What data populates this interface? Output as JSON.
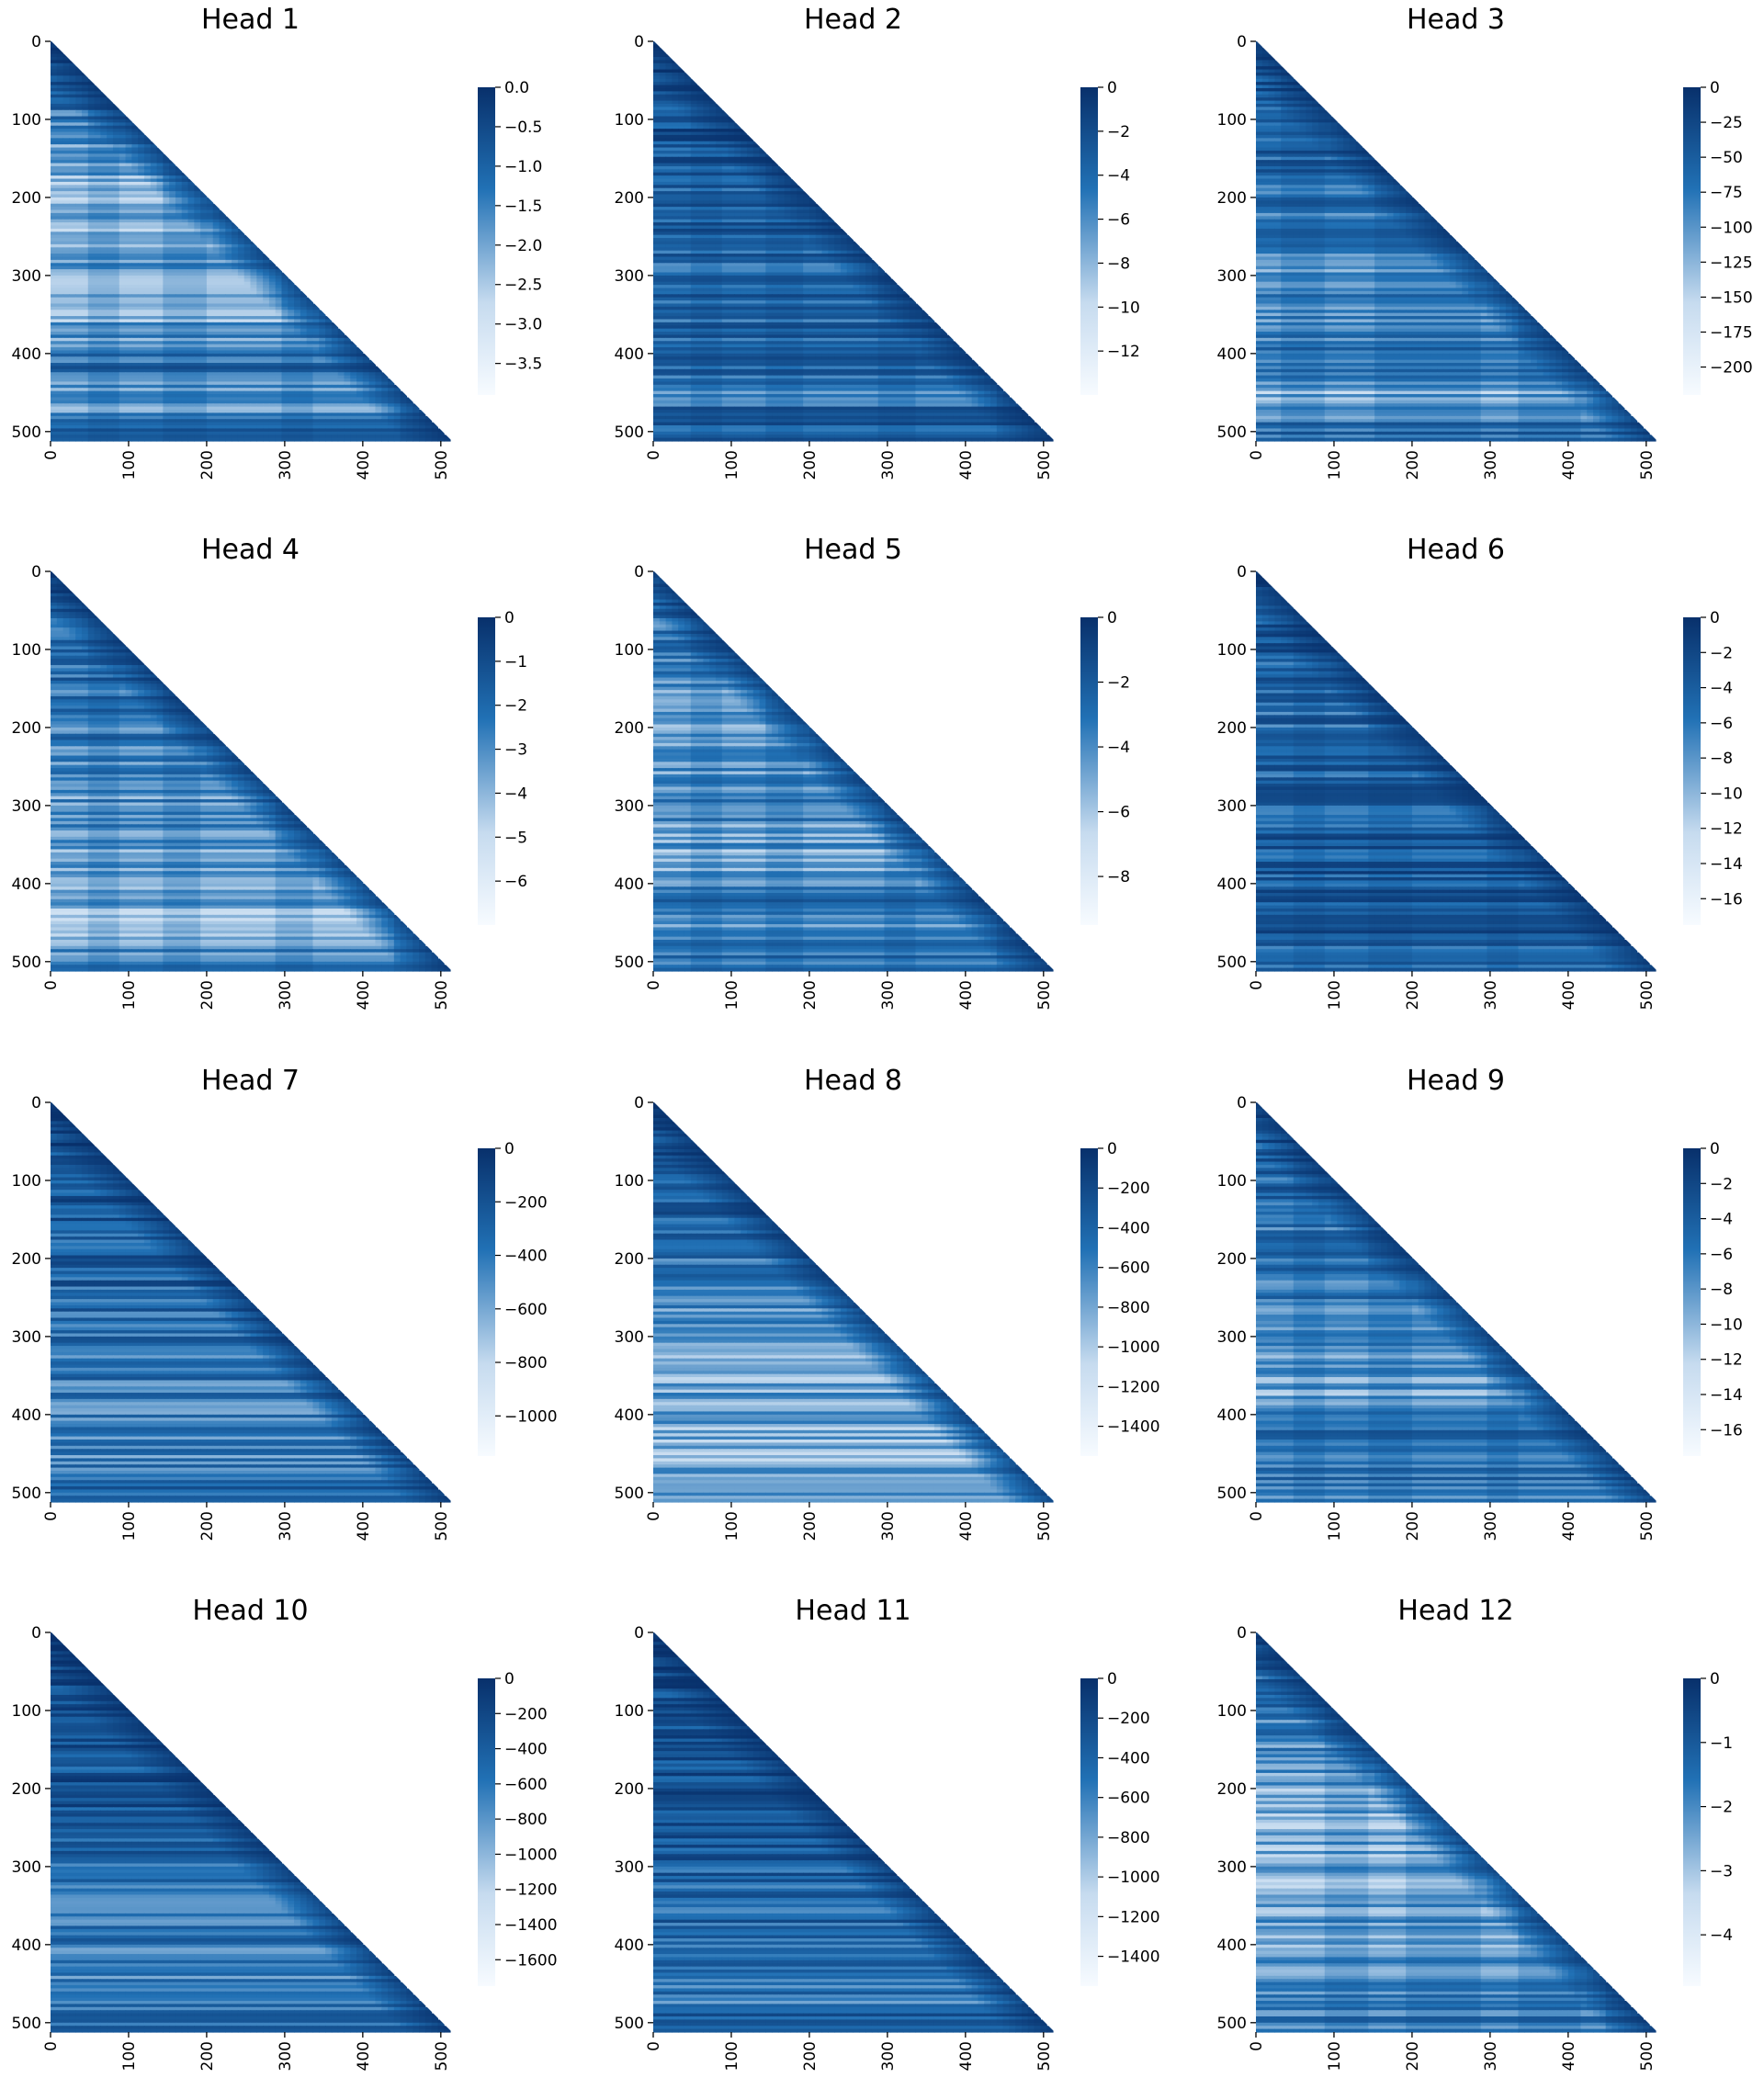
{
  "colors": {
    "dark": "#08306b",
    "mid": "#2171b5",
    "light": "#c6dbef",
    "white": "#f7fbff"
  },
  "chart_data": [
    {
      "type": "heatmap",
      "title": "Head 1",
      "mask": "upper-triangle",
      "x_ticks": [
        0,
        100,
        200,
        300,
        400,
        500
      ],
      "y_ticks": [
        0,
        100,
        200,
        300,
        400,
        500
      ],
      "colorbar": {
        "min": -3.9,
        "max": 0,
        "ticks": [
          0.0,
          -0.5,
          -1.0,
          -1.5,
          -2.0,
          -2.5,
          -3.0,
          -3.5
        ],
        "labels": [
          "0.0",
          "−0.5",
          "−1.0",
          "−1.5",
          "−2.0",
          "−2.5",
          "−3.0",
          "−3.5"
        ]
      },
      "column_bands": [
        0,
        45,
        90,
        145,
        200,
        295,
        340,
        450
      ],
      "row_brightness": [
        [
          0,
          0.15
        ],
        [
          60,
          0.25
        ],
        [
          200,
          0.6
        ],
        [
          300,
          0.45
        ],
        [
          330,
          0.65
        ],
        [
          415,
          0.3
        ],
        [
          460,
          0.55
        ],
        [
          500,
          0.3
        ]
      ]
    },
    {
      "type": "heatmap",
      "title": "Head 2",
      "mask": "upper-triangle",
      "x_ticks": [
        0,
        100,
        200,
        300,
        400,
        500
      ],
      "y_ticks": [
        0,
        100,
        200,
        300,
        400,
        500
      ],
      "colorbar": {
        "min": -14,
        "max": 0,
        "ticks": [
          0,
          -2,
          -4,
          -6,
          -8,
          -10,
          -12
        ],
        "labels": [
          "0",
          "−2",
          "−4",
          "−6",
          "−8",
          "−10",
          "−12"
        ]
      },
      "column_bands": [
        0,
        45,
        90,
        145,
        190,
        290,
        340,
        440
      ],
      "row_brightness": [
        [
          0,
          0.15
        ],
        [
          150,
          0.2
        ],
        [
          300,
          0.3
        ],
        [
          415,
          0.25
        ],
        [
          450,
          0.35
        ],
        [
          500,
          0.2
        ]
      ]
    },
    {
      "type": "heatmap",
      "title": "Head 3",
      "mask": "upper-triangle",
      "x_ticks": [
        0,
        100,
        200,
        300,
        400,
        500
      ],
      "y_ticks": [
        0,
        100,
        200,
        300,
        400,
        500
      ],
      "colorbar": {
        "min": -220,
        "max": 0,
        "ticks": [
          0,
          -25,
          -50,
          -75,
          -100,
          -125,
          -150,
          -175,
          -200
        ],
        "labels": [
          "0",
          "−25",
          "−50",
          "−75",
          "−100",
          "−125",
          "−150",
          "−175",
          "−200"
        ]
      },
      "column_bands": [
        0,
        30,
        90,
        150,
        290,
        340,
        420
      ],
      "row_brightness": [
        [
          0,
          0.2
        ],
        [
          200,
          0.3
        ],
        [
          300,
          0.45
        ],
        [
          420,
          0.35
        ],
        [
          450,
          0.6
        ],
        [
          500,
          0.3
        ]
      ]
    },
    {
      "type": "heatmap",
      "title": "Head 4",
      "mask": "upper-triangle",
      "x_ticks": [
        0,
        100,
        200,
        300,
        400,
        500
      ],
      "y_ticks": [
        0,
        100,
        200,
        300,
        400,
        500
      ],
      "colorbar": {
        "min": -7,
        "max": 0,
        "ticks": [
          0,
          -1,
          -2,
          -3,
          -4,
          -5,
          -6
        ],
        "labels": [
          "0",
          "−1",
          "−2",
          "−3",
          "−4",
          "−5",
          "−6"
        ]
      },
      "column_bands": [
        0,
        45,
        90,
        145,
        190,
        290,
        340,
        440
      ],
      "row_brightness": [
        [
          0,
          0.2
        ],
        [
          200,
          0.35
        ],
        [
          300,
          0.45
        ],
        [
          400,
          0.5
        ],
        [
          460,
          0.6
        ],
        [
          500,
          0.35
        ]
      ]
    },
    {
      "type": "heatmap",
      "title": "Head 5",
      "mask": "upper-triangle",
      "x_ticks": [
        0,
        100,
        200,
        300,
        400,
        500
      ],
      "y_ticks": [
        0,
        100,
        200,
        300,
        400,
        500
      ],
      "colorbar": {
        "min": -9.5,
        "max": 0,
        "ticks": [
          0,
          -2,
          -4,
          -6,
          -8
        ],
        "labels": [
          "0",
          "−2",
          "−4",
          "−6",
          "−8"
        ]
      },
      "column_bands": [
        0,
        45,
        90,
        145,
        190,
        295,
        340,
        440
      ],
      "row_brightness": [
        [
          0,
          0.25
        ],
        [
          200,
          0.5
        ],
        [
          300,
          0.4
        ],
        [
          380,
          0.55
        ],
        [
          420,
          0.3
        ],
        [
          470,
          0.45
        ],
        [
          500,
          0.3
        ]
      ]
    },
    {
      "type": "heatmap",
      "title": "Head 6",
      "mask": "upper-triangle",
      "x_ticks": [
        0,
        100,
        200,
        300,
        400,
        500
      ],
      "y_ticks": [
        0,
        100,
        200,
        300,
        400,
        500
      ],
      "colorbar": {
        "min": -17.5,
        "max": 0,
        "ticks": [
          0,
          -2,
          -4,
          -6,
          -8,
          -10,
          -12,
          -14,
          -16
        ],
        "labels": [
          "0",
          "−2",
          "−4",
          "−6",
          "−8",
          "−10",
          "−12",
          "−14",
          "−16"
        ]
      },
      "column_bands": [
        0,
        45,
        90,
        145,
        200,
        295,
        340
      ],
      "row_brightness": [
        [
          0,
          0.15
        ],
        [
          200,
          0.3
        ],
        [
          300,
          0.25
        ],
        [
          420,
          0.2
        ],
        [
          500,
          0.25
        ]
      ]
    },
    {
      "type": "heatmap",
      "title": "Head 7",
      "mask": "upper-triangle",
      "x_ticks": [
        0,
        100,
        200,
        300,
        400,
        500
      ],
      "y_ticks": [
        0,
        100,
        200,
        300,
        400,
        500
      ],
      "colorbar": {
        "min": -1150,
        "max": 0,
        "ticks": [
          0,
          -200,
          -400,
          -600,
          -800,
          -1000
        ],
        "labels": [
          "0",
          "−200",
          "−400",
          "−600",
          "−800",
          "−1000"
        ]
      },
      "column_bands": [],
      "row_brightness": [
        [
          0,
          0.1
        ],
        [
          200,
          0.25
        ],
        [
          300,
          0.3
        ],
        [
          450,
          0.4
        ],
        [
          500,
          0.3
        ]
      ]
    },
    {
      "type": "heatmap",
      "title": "Head 8",
      "mask": "upper-triangle",
      "x_ticks": [
        0,
        100,
        200,
        300,
        400,
        500
      ],
      "y_ticks": [
        0,
        100,
        200,
        300,
        400,
        500
      ],
      "colorbar": {
        "min": -1550,
        "max": 0,
        "ticks": [
          0,
          -200,
          -400,
          -600,
          -800,
          -1000,
          -1200,
          -1400
        ],
        "labels": [
          "0",
          "−200",
          "−400",
          "−600",
          "−800",
          "−1000",
          "−1200",
          "−1400"
        ]
      },
      "column_bands": [],
      "row_brightness": [
        [
          0,
          0.15
        ],
        [
          200,
          0.3
        ],
        [
          300,
          0.45
        ],
        [
          450,
          0.55
        ],
        [
          500,
          0.5
        ]
      ]
    },
    {
      "type": "heatmap",
      "title": "Head 9",
      "mask": "upper-triangle",
      "x_ticks": [
        0,
        100,
        200,
        300,
        400,
        500
      ],
      "y_ticks": [
        0,
        100,
        200,
        300,
        400,
        500
      ],
      "colorbar": {
        "min": -17.5,
        "max": 0,
        "ticks": [
          0,
          -2,
          -4,
          -6,
          -8,
          -10,
          -12,
          -14,
          -16
        ],
        "labels": [
          "0",
          "−2",
          "−4",
          "−6",
          "−8",
          "−10",
          "−12",
          "−14",
          "−16"
        ]
      },
      "column_bands": [
        0,
        45,
        90,
        145,
        200,
        300,
        340
      ],
      "row_brightness": [
        [
          0,
          0.2
        ],
        [
          200,
          0.35
        ],
        [
          300,
          0.4
        ],
        [
          380,
          0.5
        ],
        [
          420,
          0.3
        ],
        [
          500,
          0.35
        ]
      ]
    },
    {
      "type": "heatmap",
      "title": "Head 10",
      "mask": "upper-triangle",
      "x_ticks": [
        0,
        100,
        200,
        300,
        400,
        500
      ],
      "y_ticks": [
        0,
        100,
        200,
        300,
        400,
        500
      ],
      "colorbar": {
        "min": -1750,
        "max": 0,
        "ticks": [
          0,
          -200,
          -400,
          -600,
          -800,
          -1000,
          -1200,
          -1400,
          -1600
        ],
        "labels": [
          "0",
          "−200",
          "−400",
          "−600",
          "−800",
          "−1000",
          "−1200",
          "−1400",
          "−1600"
        ]
      },
      "column_bands": [],
      "row_brightness": [
        [
          0,
          0.1
        ],
        [
          200,
          0.2
        ],
        [
          350,
          0.3
        ],
        [
          470,
          0.4
        ],
        [
          500,
          0.25
        ]
      ]
    },
    {
      "type": "heatmap",
      "title": "Head 11",
      "mask": "upper-triangle",
      "x_ticks": [
        0,
        100,
        200,
        300,
        400,
        500
      ],
      "y_ticks": [
        0,
        100,
        200,
        300,
        400,
        500
      ],
      "colorbar": {
        "min": -1550,
        "max": 0,
        "ticks": [
          0,
          -200,
          -400,
          -600,
          -800,
          -1000,
          -1200,
          -1400
        ],
        "labels": [
          "0",
          "−200",
          "−400",
          "−600",
          "−800",
          "−1000",
          "−1200",
          "−1400"
        ]
      },
      "column_bands": [],
      "row_brightness": [
        [
          0,
          0.1
        ],
        [
          200,
          0.2
        ],
        [
          300,
          0.25
        ],
        [
          470,
          0.35
        ],
        [
          500,
          0.25
        ]
      ]
    },
    {
      "type": "heatmap",
      "title": "Head 12",
      "mask": "upper-triangle",
      "x_ticks": [
        0,
        100,
        200,
        300,
        400,
        500
      ],
      "y_ticks": [
        0,
        100,
        200,
        300,
        400,
        500
      ],
      "colorbar": {
        "min": -4.8,
        "max": 0,
        "ticks": [
          0,
          -1,
          -2,
          -3,
          -4
        ],
        "labels": [
          "0",
          "−1",
          "−2",
          "−3",
          "−4"
        ]
      },
      "column_bands": [
        0,
        90,
        145,
        190,
        290,
        340,
        415,
        450
      ],
      "row_brightness": [
        [
          0,
          0.2
        ],
        [
          100,
          0.35
        ],
        [
          200,
          0.5
        ],
        [
          300,
          0.55
        ],
        [
          420,
          0.45
        ],
        [
          500,
          0.35
        ]
      ]
    }
  ]
}
